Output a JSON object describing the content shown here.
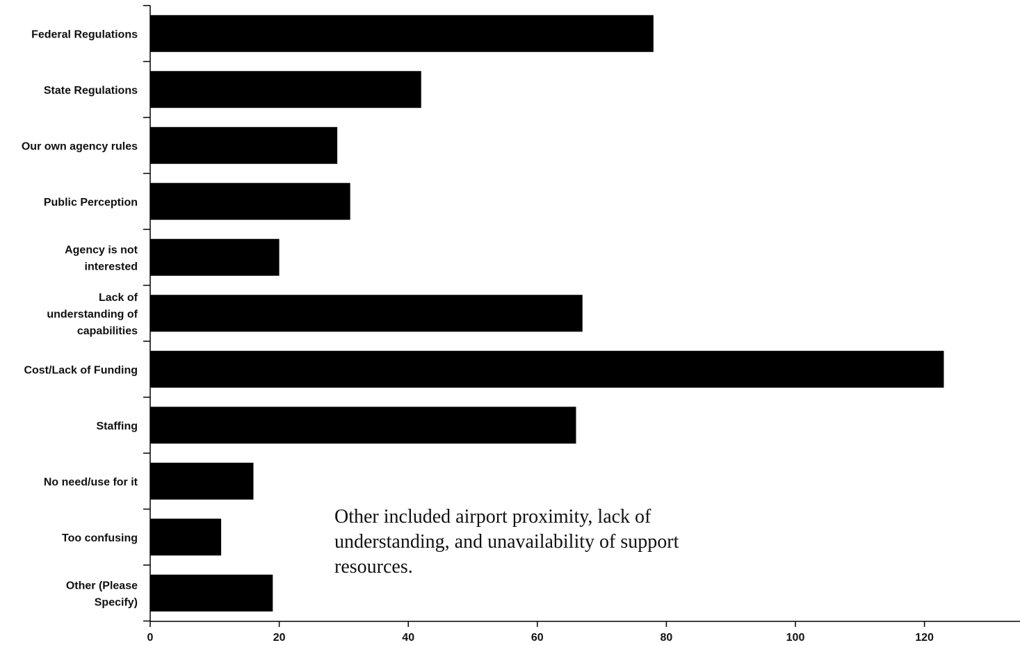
{
  "chart_data": {
    "type": "bar",
    "orientation": "horizontal",
    "categories": [
      "Federal Regulations",
      "State Regulations",
      "Our own agency rules",
      "Public Perception",
      "Agency is not interested",
      "Lack of understanding of capabilities",
      "Cost/Lack of Funding",
      "Staffing",
      "No need/use for it",
      "Too confusing",
      "Other (Please Specify)"
    ],
    "values": [
      78,
      42,
      29,
      31,
      20,
      67,
      123,
      66,
      16,
      11,
      19
    ],
    "xlim": [
      0,
      135
    ],
    "xticks": [
      0,
      20,
      40,
      60,
      80,
      100,
      120
    ],
    "title": "",
    "xlabel": "",
    "ylabel": "",
    "grid": false,
    "bar_color": "#000000",
    "annotation": "Other included airport proximity, lack of understanding, and unavailability of support resources."
  }
}
